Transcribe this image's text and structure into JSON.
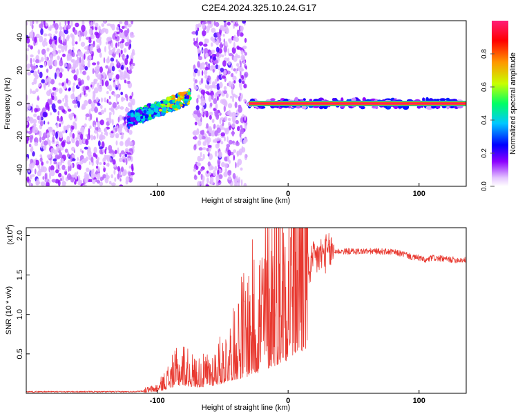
{
  "title": "C2E4.2024.325.10.24.G17",
  "colors": {
    "snr_line": "#e8382f",
    "spectrogram_background": "#ffffff",
    "frame": "#000000"
  },
  "chart_data": [
    {
      "type": "heatmap",
      "name": "spectrogram",
      "xlabel": "Height of straight line (km)",
      "ylabel": "Frequency (Hz)",
      "xlim": [
        -200,
        136
      ],
      "ylim": [
        -50,
        50
      ],
      "x_ticks": [
        -100,
        0,
        100
      ],
      "y_ticks": [
        -40,
        -20,
        0,
        20,
        40
      ],
      "colorbar": {
        "label": "Normalized spectral amplitude",
        "range": [
          0,
          1
        ],
        "ticks": [
          "0.0",
          "0.2",
          "0.4",
          "0.6",
          "0.8"
        ],
        "colormap": [
          "#ffffff",
          "#8c00ff",
          "#0000ff",
          "#00c8ff",
          "#00ff64",
          "#c8ff00",
          "#ff9600",
          "#ff0000",
          "#ff1e78"
        ]
      },
      "regions": [
        {
          "x": [
            -200,
            -118
          ],
          "freq_band": [
            -50,
            50
          ],
          "level": 0.12,
          "pattern": "scattered"
        },
        {
          "x": [
            -122,
            -75
          ],
          "freq_band": [
            -14,
            6
          ],
          "level": 0.4,
          "pattern": "rising band"
        },
        {
          "x": [
            -72,
            -32
          ],
          "freq_band": [
            -50,
            50
          ],
          "level": 0.12,
          "pattern": "scattered"
        },
        {
          "x": [
            -30,
            136
          ],
          "freq_band": [
            -3,
            3
          ],
          "level": 0.95,
          "pattern": "line at 0 Hz"
        }
      ]
    },
    {
      "type": "line",
      "name": "snr",
      "xlabel": "Height of straight line (km)",
      "ylabel": "SNR (10 * v/v)",
      "y_multiplier": "(x10^4)",
      "y_multiplier_base": "(x10",
      "y_multiplier_exp": "4",
      "y_multiplier_close": ")",
      "xlim": [
        -200,
        136
      ],
      "ylim": [
        0,
        2.1
      ],
      "x_ticks": [
        -100,
        0,
        100
      ],
      "y_ticks": [
        0.5,
        1.0,
        1.5,
        2.0
      ],
      "y_tick_labels": [
        "0.5",
        "1.0",
        "1.5",
        "2.0"
      ],
      "x_tick_labels": [
        "-100",
        "0",
        "100"
      ],
      "series": [
        {
          "x": [
            -200,
            -150,
            -120,
            -110,
            -100,
            -95,
            -90,
            -85,
            -80,
            -75,
            -70,
            -65,
            -60,
            -55,
            -50,
            -45,
            -40,
            -35,
            -30,
            -25,
            -20,
            -15,
            -10,
            -5,
            0,
            5,
            10,
            15,
            20,
            25,
            30,
            35,
            40,
            50,
            60,
            70,
            80,
            90,
            95,
            100,
            105,
            110,
            120,
            130,
            136
          ],
          "values": [
            0.02,
            0.02,
            0.02,
            0.03,
            0.06,
            0.12,
            0.2,
            0.26,
            0.3,
            0.24,
            0.22,
            0.22,
            0.25,
            0.3,
            0.35,
            0.45,
            0.5,
            0.55,
            0.62,
            0.7,
            0.8,
            0.9,
            1.0,
            1.1,
            1.2,
            1.35,
            1.45,
            1.55,
            1.7,
            1.75,
            1.78,
            1.8,
            1.8,
            1.8,
            1.8,
            1.8,
            1.79,
            1.76,
            1.72,
            1.72,
            1.68,
            1.72,
            1.7,
            1.69,
            1.69
          ]
        }
      ]
    }
  ],
  "tick_labels": {
    "spectrogram_x": [
      "-100",
      "0",
      "100"
    ],
    "spectrogram_y": [
      "40",
      "20",
      "0",
      "-20",
      "-40"
    ],
    "colorbar": [
      "0.0",
      "0.2",
      "0.4",
      "0.6",
      "0.8"
    ]
  }
}
